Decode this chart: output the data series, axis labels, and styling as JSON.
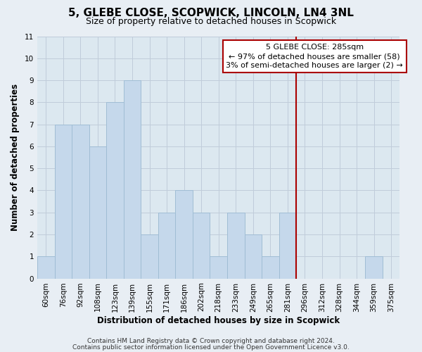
{
  "title": "5, GLEBE CLOSE, SCOPWICK, LINCOLN, LN4 3NL",
  "subtitle": "Size of property relative to detached houses in Scopwick",
  "xlabel": "Distribution of detached houses by size in Scopwick",
  "ylabel": "Number of detached properties",
  "bar_labels": [
    "60sqm",
    "76sqm",
    "92sqm",
    "108sqm",
    "123sqm",
    "139sqm",
    "155sqm",
    "171sqm",
    "186sqm",
    "202sqm",
    "218sqm",
    "233sqm",
    "249sqm",
    "265sqm",
    "281sqm",
    "296sqm",
    "312sqm",
    "328sqm",
    "344sqm",
    "359sqm",
    "375sqm"
  ],
  "bar_values": [
    1,
    7,
    7,
    6,
    8,
    9,
    2,
    3,
    4,
    3,
    1,
    3,
    2,
    1,
    3,
    0,
    0,
    0,
    0,
    1,
    0
  ],
  "bar_color": "#c5d8eb",
  "bar_edgecolor": "#a0bdd4",
  "vline_x_idx": 14,
  "vline_color": "#aa0000",
  "ylim": [
    0,
    11
  ],
  "yticks": [
    0,
    1,
    2,
    3,
    4,
    5,
    6,
    7,
    8,
    9,
    10,
    11
  ],
  "annotation_title": "5 GLEBE CLOSE: 285sqm",
  "annotation_line1": "← 97% of detached houses are smaller (58)",
  "annotation_line2": "3% of semi-detached houses are larger (2) →",
  "footer1": "Contains HM Land Registry data © Crown copyright and database right 2024.",
  "footer2": "Contains public sector information licensed under the Open Government Licence v3.0.",
  "bg_color": "#e8eef4",
  "plot_bg_color": "#dce8f0",
  "grid_color": "#c0ccda",
  "title_fontsize": 11,
  "subtitle_fontsize": 9,
  "axis_label_fontsize": 8.5,
  "tick_fontsize": 7.5,
  "footer_fontsize": 6.5,
  "annotation_fontsize": 8
}
